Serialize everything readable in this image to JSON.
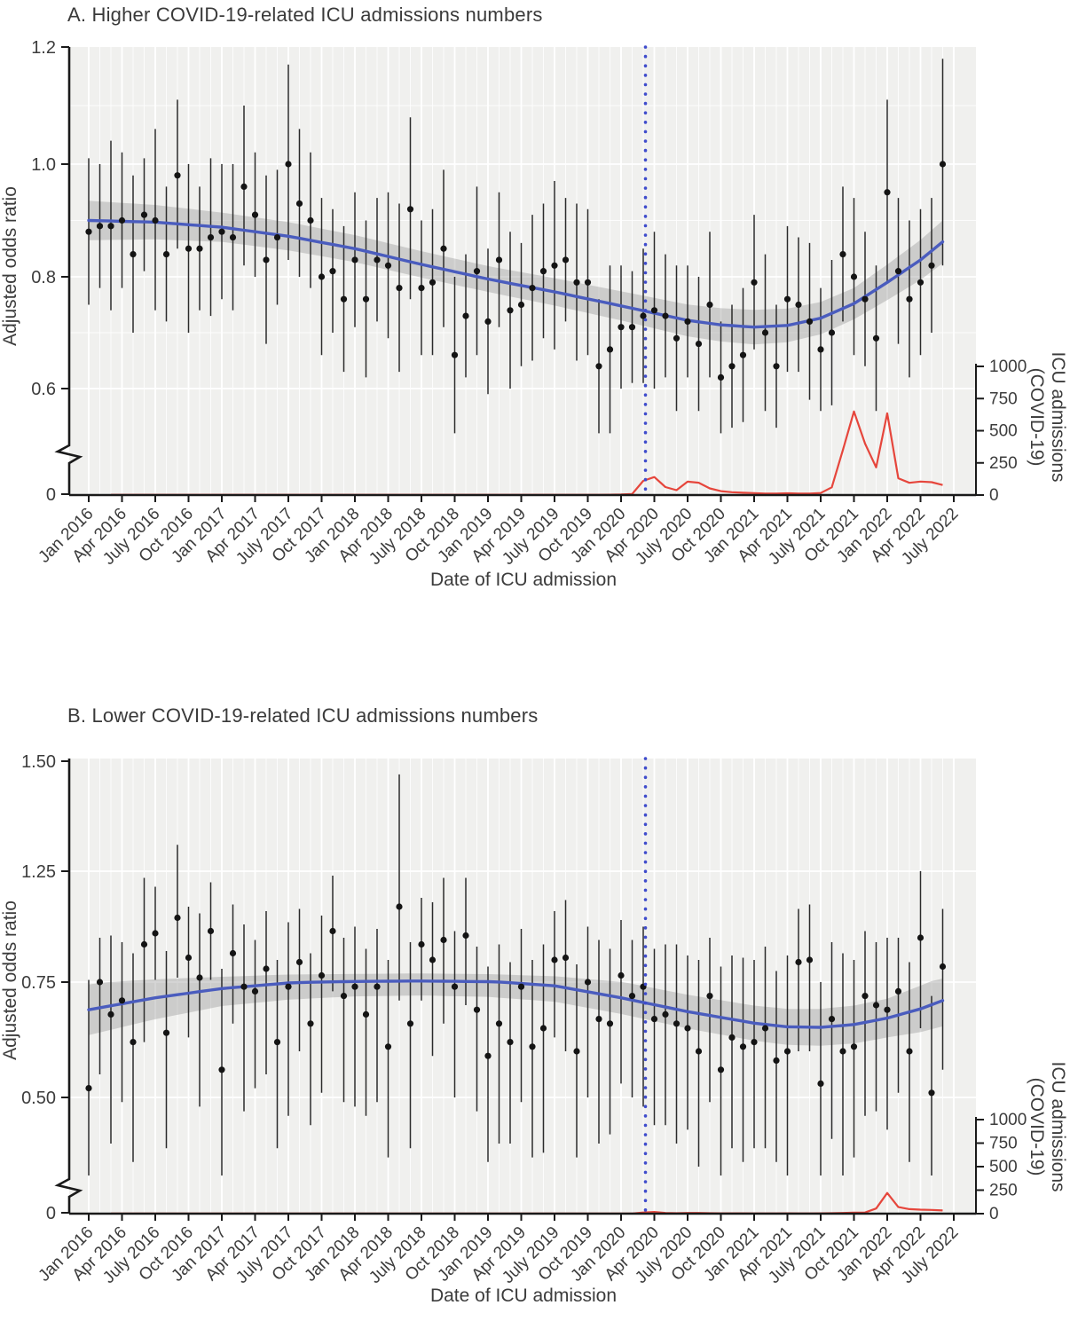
{
  "figure": {
    "panel_a_title": "A. Higher COVID-19-related ICU admissions numbers",
    "panel_b_title": "B. Lower COVID-19-related ICU admissions numbers"
  },
  "colors": {
    "plot_background": "#f0f0ee",
    "gridline": "#ffffff",
    "trend_line_blue": "#4a5cbe",
    "confidence_band_gray": "#9a9a9a",
    "point_black": "#141414",
    "error_bar": "#2b2b2b",
    "icu_admissions_red": "#e6463c",
    "pandemic_vline_blue": "#3f4ccc",
    "axis": "#1a1a1a",
    "text": "#3c3c3c"
  },
  "chart_data": [
    {
      "type": "scatter",
      "title": "A. Higher COVID-19-related ICU admissions numbers",
      "xlabel": "Date of ICU admission",
      "ylabel": "Adjusted odds ratio",
      "y2label": [
        "ICU admissions",
        "(COVID-19)"
      ],
      "frequency": "monthly",
      "x_start": "Jan 2016",
      "x_end": "June 2022",
      "x_tick_labels": [
        "Jan 2016",
        "Apr 2016",
        "July 2016",
        "Oct 2016",
        "Jan 2017",
        "Apr 2017",
        "July 2017",
        "Oct 2017",
        "Jan 2018",
        "Apr 2018",
        "July 2018",
        "Oct 2018",
        "Jan 2019",
        "Apr 2019",
        "July 2019",
        "Oct 2019",
        "Jan 2020",
        "Apr 2020",
        "July 2020",
        "Oct 2020",
        "Jan 2021",
        "Apr 2021",
        "July 2021",
        "Oct 2021",
        "Jan 2022",
        "Apr 2022",
        "July 2022"
      ],
      "x_tick_step_months": 3,
      "y_tick_labels": [
        "1.2",
        "1.0",
        "0.8",
        "0.6"
      ],
      "y_tick_values": [
        1.2,
        1.0,
        0.8,
        0.6
      ],
      "y_axis_break": true,
      "y_zero_label": "0",
      "y2_tick_labels": [
        "1000",
        "750",
        "500",
        "250",
        "0"
      ],
      "y2_tick_values": [
        1000,
        750,
        500,
        250,
        0
      ],
      "grid": true,
      "legend": "none",
      "pandemic_vline_month_index": 50.2,
      "or_points": [
        0.88,
        0.89,
        0.89,
        0.9,
        0.84,
        0.91,
        0.9,
        0.84,
        0.98,
        0.85,
        0.85,
        0.87,
        0.88,
        0.87,
        0.96,
        0.91,
        0.83,
        0.87,
        1.0,
        0.93,
        0.9,
        0.8,
        0.81,
        0.76,
        0.83,
        0.76,
        0.83,
        0.82,
        0.78,
        0.92,
        0.78,
        0.79,
        0.85,
        0.66,
        0.73,
        0.81,
        0.72,
        0.83,
        0.74,
        0.75,
        0.78,
        0.81,
        0.82,
        0.83,
        0.79,
        0.79,
        0.64,
        0.67,
        0.71,
        0.71,
        0.73,
        0.74,
        0.73,
        0.69,
        0.72,
        0.68,
        0.75,
        0.62,
        0.64,
        0.66,
        0.79,
        0.7,
        0.64,
        0.76,
        0.75,
        0.72,
        0.67,
        0.7,
        0.84,
        0.8,
        0.76,
        0.69,
        0.95,
        0.81,
        0.76,
        0.79,
        0.82,
        1.0
      ],
      "or_ci_half_width": [
        0.13,
        0.11,
        0.15,
        0.12,
        0.14,
        0.1,
        0.16,
        0.12,
        0.13,
        0.15,
        0.11,
        0.14,
        0.12,
        0.13,
        0.14,
        0.11,
        0.15,
        0.12,
        0.17,
        0.13,
        0.12,
        0.14,
        0.11,
        0.13,
        0.12,
        0.14,
        0.11,
        0.13,
        0.15,
        0.16,
        0.12,
        0.13,
        0.14,
        0.14,
        0.11,
        0.15,
        0.13,
        0.12,
        0.14,
        0.11,
        0.13,
        0.12,
        0.15,
        0.11,
        0.14,
        0.13,
        0.12,
        0.15,
        0.11,
        0.1,
        0.12,
        0.14,
        0.11,
        0.13,
        0.1,
        0.12,
        0.13,
        0.1,
        0.11,
        0.12,
        0.12,
        0.14,
        0.11,
        0.13,
        0.12,
        0.14,
        0.11,
        0.13,
        0.12,
        0.14,
        0.12,
        0.13,
        0.16,
        0.13,
        0.14,
        0.13,
        0.12,
        0.18
      ],
      "trend_keypoints_x": [
        0,
        6,
        12,
        18,
        24,
        30,
        36,
        42,
        48,
        51,
        54,
        57,
        60,
        63,
        66,
        69,
        72,
        75,
        77
      ],
      "trend_keypoints_y": [
        0.9,
        0.897,
        0.888,
        0.872,
        0.85,
        0.822,
        0.796,
        0.773,
        0.748,
        0.735,
        0.722,
        0.714,
        0.71,
        0.713,
        0.726,
        0.752,
        0.79,
        0.83,
        0.862
      ],
      "band_half_keypoints_x": [
        0,
        12,
        24,
        36,
        48,
        60,
        69,
        77
      ],
      "band_half_keypoints_y": [
        0.035,
        0.026,
        0.024,
        0.023,
        0.026,
        0.031,
        0.028,
        0.038
      ],
      "icu_admissions": [
        null,
        null,
        2,
        2,
        2,
        2,
        2,
        2,
        2,
        2,
        2,
        2,
        2,
        2,
        2,
        2,
        2,
        2,
        2,
        2,
        2,
        2,
        2,
        2,
        2,
        2,
        2,
        2,
        2,
        2,
        2,
        2,
        2,
        2,
        2,
        2,
        2,
        2,
        2,
        2,
        2,
        2,
        2,
        2,
        2,
        2,
        2,
        3,
        4,
        8,
        110,
        140,
        62,
        38,
        104,
        96,
        52,
        30,
        22,
        18,
        15,
        12,
        12,
        14,
        12,
        11,
        16,
        60,
        350,
        650,
        400,
        215,
        635,
        130,
        95,
        105,
        100,
        78
      ]
    },
    {
      "type": "scatter",
      "title": "B. Lower COVID-19-related ICU admissions numbers",
      "xlabel": "Date of ICU admission",
      "ylabel": "Adjusted odds ratio",
      "y2label": [
        "ICU admissions",
        "(COVID-19)"
      ],
      "frequency": "monthly",
      "x_start": "Jan 2016",
      "x_end": "June 2022",
      "x_tick_labels": [
        "Jan 2016",
        "Apr 2016",
        "July 2016",
        "Oct 2016",
        "Jan 2017",
        "Apr 2017",
        "July 2017",
        "Oct 2017",
        "Jan 2018",
        "Apr 2018",
        "July 2018",
        "Oct 2018",
        "Jan 2019",
        "Apr 2019",
        "July 2019",
        "Oct 2019",
        "Jan 2020",
        "Apr 2020",
        "July 2020",
        "Oct 2020",
        "Jan 2021",
        "Apr 2021",
        "July 2021",
        "Oct 2021",
        "Jan 2022",
        "Apr 2022",
        "July 2022"
      ],
      "x_tick_step_months": 3,
      "y_tick_labels": [
        "1.50",
        "1.25",
        "0.75",
        "0.50"
      ],
      "y_tick_values": [
        1.5,
        1.25,
        0.75,
        0.5
      ],
      "y_axis_break": true,
      "y_zero_label": "0",
      "y2_tick_labels": [
        "1000",
        "750",
        "500",
        "250",
        "0"
      ],
      "y2_tick_values": [
        1000,
        750,
        500,
        250,
        0
      ],
      "grid": true,
      "legend": "none",
      "pandemic_vline_month_index": 50.2,
      "or_points": [
        0.52,
        0.75,
        0.68,
        0.71,
        0.62,
        0.92,
        0.97,
        0.64,
        1.04,
        0.86,
        0.77,
        0.98,
        0.56,
        0.88,
        0.74,
        0.73,
        0.81,
        0.62,
        0.74,
        0.84,
        0.66,
        0.78,
        0.98,
        0.72,
        0.74,
        0.68,
        0.74,
        0.61,
        1.09,
        0.66,
        0.92,
        0.85,
        0.94,
        0.74,
        0.96,
        0.69,
        0.59,
        0.66,
        0.62,
        0.74,
        0.61,
        0.65,
        0.85,
        0.86,
        0.6,
        0.75,
        0.67,
        0.66,
        0.78,
        0.72,
        0.74,
        0.67,
        0.68,
        0.66,
        0.65,
        0.6,
        0.72,
        0.56,
        0.63,
        0.61,
        0.62,
        0.65,
        0.58,
        0.6,
        0.84,
        0.85,
        0.53,
        0.67,
        0.6,
        0.61,
        0.72,
        0.7,
        0.69,
        0.73,
        0.6,
        0.95,
        0.51,
        0.82
      ],
      "or_ci_half_width": [
        0.24,
        0.2,
        0.28,
        0.22,
        0.26,
        0.3,
        0.21,
        0.25,
        0.27,
        0.23,
        0.29,
        0.22,
        0.25,
        0.22,
        0.27,
        0.21,
        0.26,
        0.23,
        0.28,
        0.24,
        0.22,
        0.27,
        0.25,
        0.23,
        0.26,
        0.22,
        0.25,
        0.24,
        0.38,
        0.27,
        0.21,
        0.26,
        0.28,
        0.24,
        0.26,
        0.22,
        0.23,
        0.26,
        0.22,
        0.25,
        0.24,
        0.27,
        0.22,
        0.26,
        0.23,
        0.25,
        0.27,
        0.24,
        0.25,
        0.22,
        0.26,
        0.23,
        0.24,
        0.26,
        0.22,
        0.25,
        0.23,
        0.26,
        0.24,
        0.25,
        0.23,
        0.26,
        0.22,
        0.27,
        0.24,
        0.25,
        0.22,
        0.26,
        0.28,
        0.24,
        0.26,
        0.23,
        0.26,
        0.22,
        0.24,
        0.3,
        0.21,
        0.26
      ],
      "trend_keypoints_x": [
        0,
        6,
        12,
        18,
        24,
        30,
        36,
        42,
        48,
        54,
        60,
        63,
        66,
        69,
        72,
        75,
        77
      ],
      "trend_keypoints_y": [
        0.69,
        0.716,
        0.736,
        0.748,
        0.753,
        0.755,
        0.752,
        0.742,
        0.716,
        0.686,
        0.661,
        0.653,
        0.652,
        0.658,
        0.672,
        0.692,
        0.71
      ],
      "band_half_keypoints_x": [
        0,
        12,
        24,
        36,
        48,
        60,
        72,
        77
      ],
      "band_half_keypoints_y": [
        0.055,
        0.038,
        0.034,
        0.034,
        0.035,
        0.038,
        0.042,
        0.056
      ],
      "icu_admissions": [
        null,
        null,
        1,
        1,
        1,
        1,
        1,
        1,
        1,
        1,
        1,
        1,
        1,
        1,
        1,
        1,
        1,
        1,
        1,
        1,
        1,
        1,
        1,
        1,
        1,
        1,
        1,
        1,
        1,
        1,
        1,
        1,
        1,
        1,
        1,
        1,
        1,
        1,
        1,
        1,
        1,
        1,
        1,
        1,
        1,
        1,
        1,
        1,
        1,
        2,
        12,
        18,
        8,
        5,
        8,
        8,
        5,
        4,
        4,
        4,
        3,
        3,
        3,
        4,
        3,
        3,
        4,
        5,
        8,
        10,
        12,
        55,
        220,
        70,
        48,
        42,
        40,
        34
      ]
    }
  ]
}
